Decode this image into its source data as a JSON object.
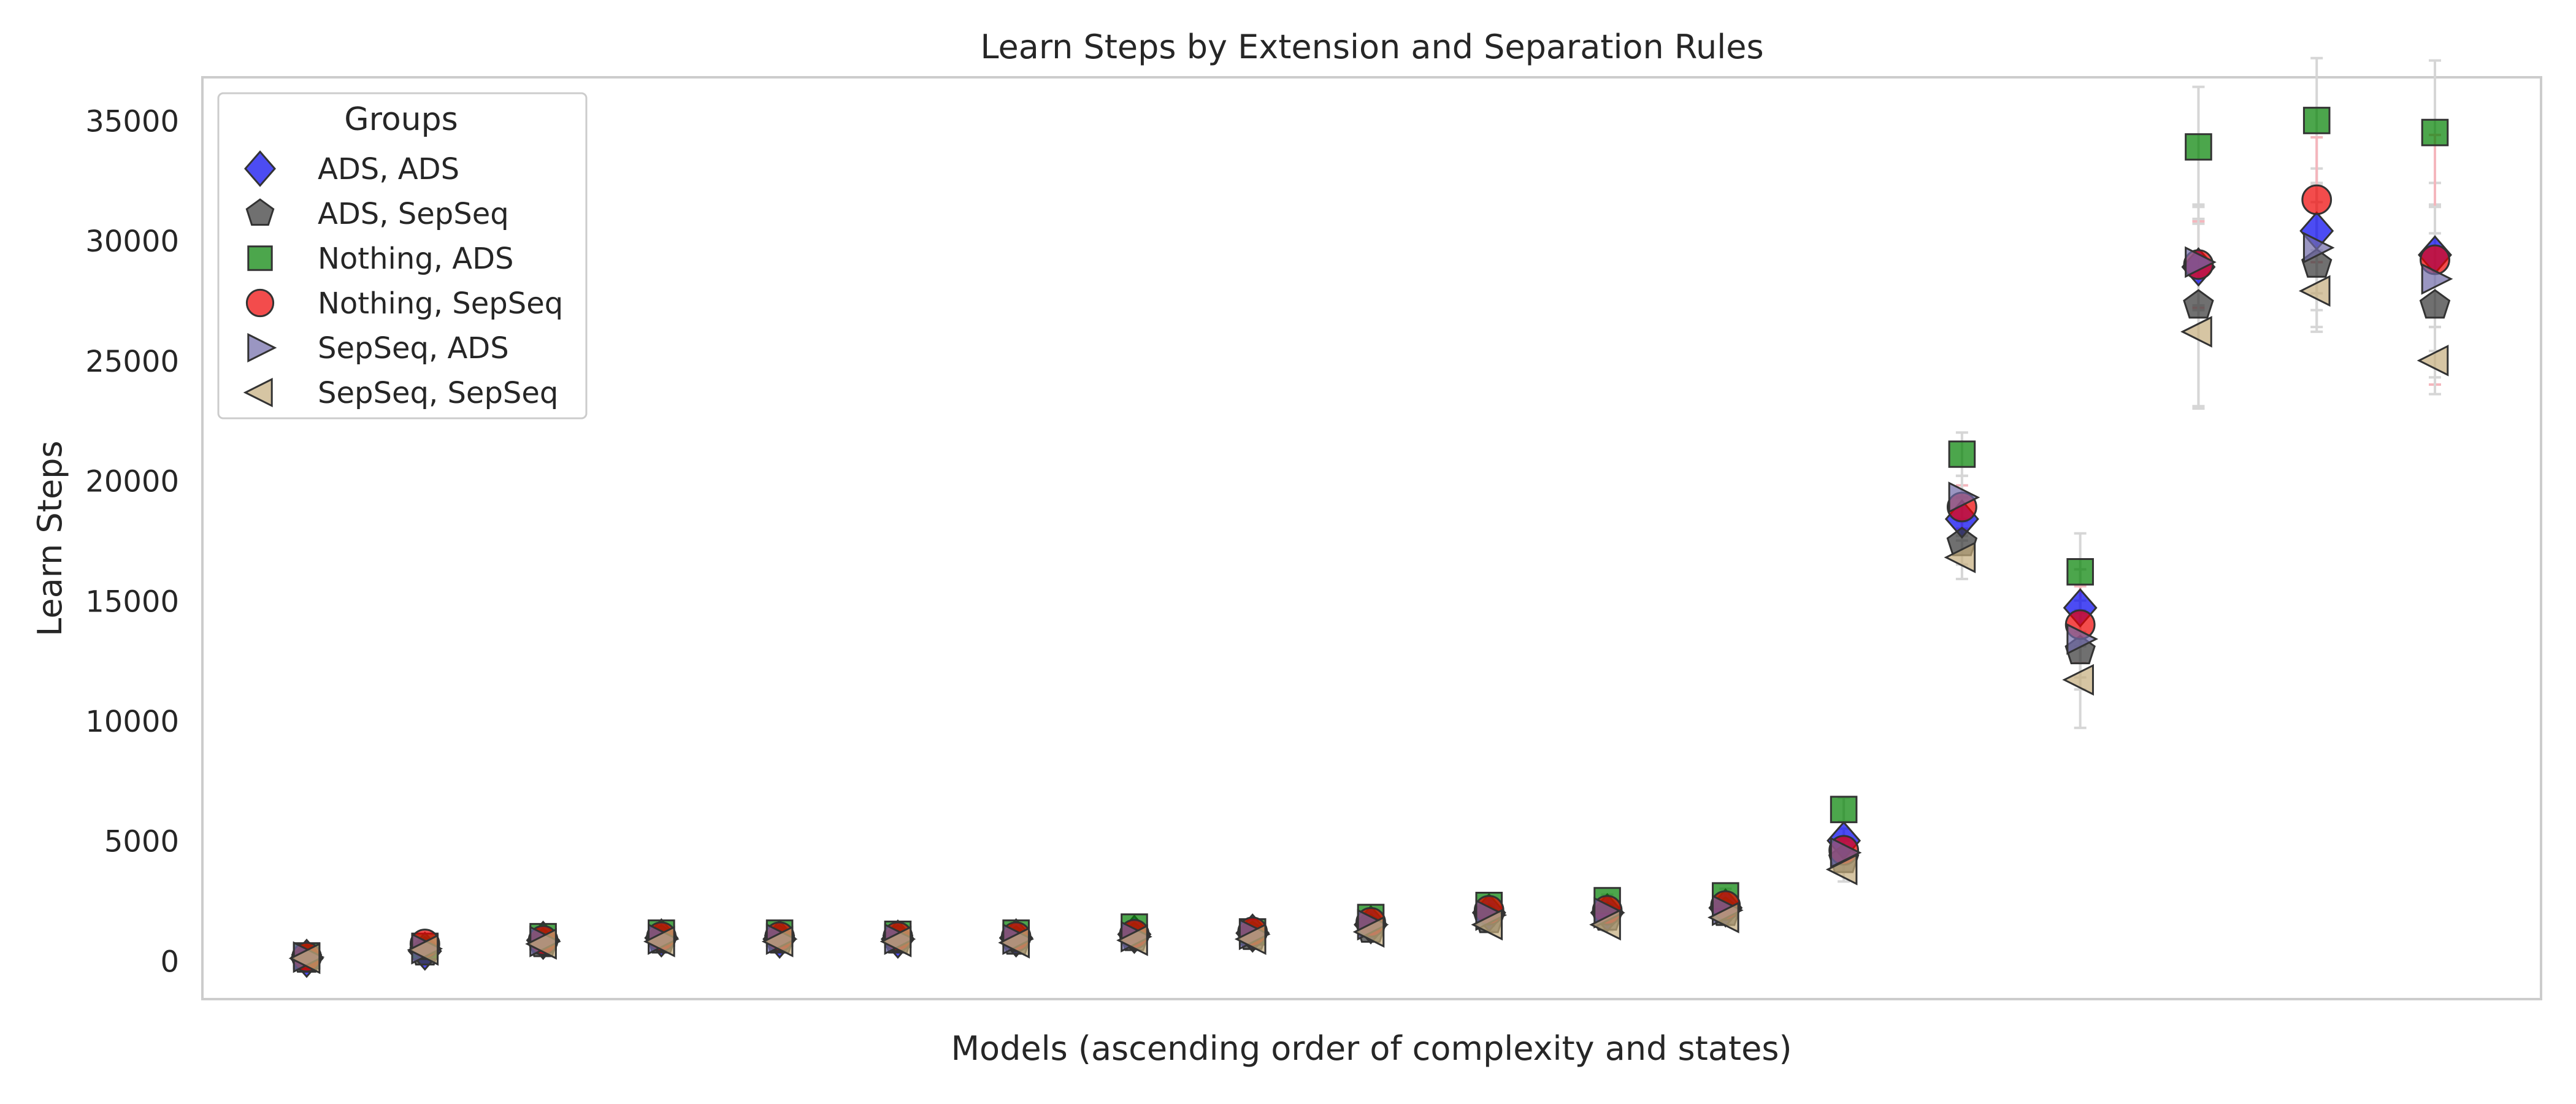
{
  "chart_data": {
    "type": "scatter",
    "title": "Learn Steps by Extension and Separation Rules",
    "xlabel": "Models (ascending order of complexity and states)",
    "ylabel": "Learn Steps",
    "ylim": [
      -1600,
      36800
    ],
    "yticks": [
      0,
      5000,
      10000,
      15000,
      20000,
      25000,
      30000,
      35000
    ],
    "grid": false,
    "x_tick_labels_shown": false,
    "legend": {
      "title": "Groups",
      "position": "top-left"
    },
    "x": [
      1,
      2,
      3,
      4,
      5,
      6,
      7,
      8,
      9,
      10,
      11,
      12,
      13,
      14,
      15,
      16,
      17,
      18,
      19
    ],
    "series": [
      {
        "name": "ADS, ADS",
        "marker": "diamond",
        "color": "#0000ee",
        "values": [
          100,
          400,
          850,
          950,
          900,
          900,
          950,
          1100,
          1150,
          1500,
          2000,
          2000,
          2200,
          5000,
          18400,
          14700,
          28900,
          30400,
          29400
        ],
        "err": [
          50,
          100,
          150,
          150,
          150,
          150,
          150,
          200,
          200,
          200,
          250,
          250,
          300,
          500,
          900,
          1600,
          1800,
          2600,
          3000
        ]
      },
      {
        "name": "ADS, SepSeq",
        "marker": "pentagon",
        "color": "#333333",
        "values": [
          50,
          350,
          700,
          850,
          850,
          850,
          800,
          950,
          1000,
          1300,
          1700,
          1800,
          2000,
          4200,
          17400,
          12900,
          27300,
          29000,
          27300
        ],
        "err": [
          50,
          100,
          150,
          150,
          150,
          150,
          150,
          200,
          200,
          200,
          250,
          250,
          300,
          500,
          900,
          1600,
          4200,
          2600,
          3000
        ]
      },
      {
        "name": "Nothing, ADS",
        "marker": "square",
        "color": "#008000",
        "values": [
          200,
          600,
          1000,
          1150,
          1150,
          1100,
          1150,
          1400,
          1200,
          1800,
          2300,
          2500,
          2700,
          6300,
          21100,
          16200,
          33900,
          35000,
          34500
        ],
        "err": [
          50,
          100,
          150,
          150,
          150,
          150,
          150,
          200,
          200,
          200,
          250,
          250,
          300,
          500,
          900,
          1600,
          2500,
          2600,
          3000
        ]
      },
      {
        "name": "Nothing, SepSeq",
        "marker": "circle",
        "color": "#ee0000",
        "values": [
          150,
          700,
          850,
          1000,
          1000,
          1000,
          1000,
          1100,
          1200,
          1600,
          2100,
          2100,
          2300,
          4600,
          18900,
          14000,
          29000,
          31700,
          29200
        ],
        "err": [
          50,
          100,
          150,
          150,
          150,
          150,
          150,
          200,
          200,
          200,
          250,
          250,
          300,
          500,
          900,
          1600,
          1800,
          2600,
          5200
        ]
      },
      {
        "name": "SepSeq, ADS",
        "marker": "triangle-right",
        "color": "#6f6aa8",
        "values": [
          150,
          500,
          800,
          900,
          900,
          900,
          900,
          1000,
          1100,
          1500,
          1900,
          2000,
          2100,
          4500,
          19300,
          13400,
          29100,
          29700,
          28400
        ],
        "err": [
          50,
          100,
          150,
          150,
          150,
          150,
          150,
          200,
          200,
          200,
          250,
          250,
          300,
          500,
          900,
          1600,
          1800,
          2600,
          3000
        ]
      },
      {
        "name": "SepSeq, SepSeq",
        "marker": "triangle-left",
        "color": "#c4ad7c",
        "values": [
          100,
          450,
          700,
          800,
          800,
          800,
          750,
          850,
          900,
          1200,
          1500,
          1500,
          1800,
          3800,
          16800,
          11700,
          26200,
          27900,
          25000
        ],
        "err": [
          50,
          100,
          150,
          150,
          150,
          150,
          150,
          200,
          200,
          200,
          250,
          250,
          300,
          500,
          900,
          2000,
          3200,
          1700,
          1400
        ]
      }
    ]
  }
}
